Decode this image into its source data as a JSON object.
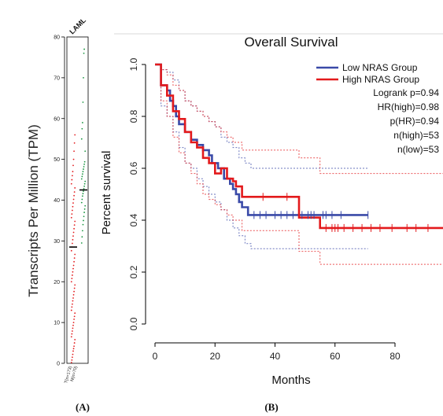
{
  "panel_labels": {
    "a": "(A)",
    "b": "(B)"
  },
  "chart_data": [
    {
      "type": "scatter",
      "panel": "A",
      "title": "LAML",
      "xlabel": "",
      "ylabel": "Transcripts Per Million (TPM)",
      "ylim": [
        0,
        80
      ],
      "yticks": [
        0,
        10,
        20,
        30,
        40,
        50,
        60,
        70,
        80
      ],
      "categories": [
        "T(n=173)",
        "N(n=70)"
      ],
      "colors": {
        "tumor": "#e31a1c",
        "normal": "#1a9641",
        "median": "#000000"
      },
      "series": [
        {
          "name": "",
          "category": "T(n=173)",
          "median": 28.5,
          "values": [
            0.2,
            0.8,
            1.5,
            2.2,
            3.0,
            3.6,
            4.2,
            5.0,
            5.8,
            6.5,
            7.2,
            7.9,
            8.6,
            9.3,
            10.0,
            10.8,
            11.5,
            12.3,
            13.0,
            13.8,
            14.5,
            15.3,
            16.0,
            16.8,
            17.6,
            18.4,
            19.2,
            20.0,
            20.8,
            21.6,
            22.4,
            23.2,
            24.0,
            24.9,
            25.8,
            26.7,
            27.6,
            28.5,
            29.4,
            30.3,
            31.2,
            32.1,
            33.0,
            33.9,
            34.8,
            35.7,
            36.6,
            37.5,
            38.4,
            39.3,
            40.2,
            41.1,
            42.0,
            43.0,
            44.0,
            45.0,
            46.0,
            47.0,
            48.5,
            50.0,
            52.0,
            54.0,
            56.0
          ]
        },
        {
          "name": "",
          "category": "N(n=70)",
          "median": 42.5,
          "values": [
            29.5,
            31.0,
            32.5,
            34.0,
            35.0,
            36.0,
            37.0,
            37.8,
            38.6,
            39.4,
            40.2,
            41.0,
            41.6,
            42.2,
            42.8,
            43.4,
            44.0,
            44.6,
            45.2,
            45.8,
            46.4,
            47.0,
            47.6,
            48.2,
            48.8,
            49.4,
            52.0,
            55.0,
            57.5,
            59.0,
            64.0,
            70.0,
            76.0,
            77.0
          ]
        }
      ]
    },
    {
      "type": "line",
      "panel": "B",
      "title": "Overall Survival",
      "xlabel": "Months",
      "ylabel": "Percent survival",
      "xlim": [
        0,
        96
      ],
      "ylim": [
        0,
        1.0
      ],
      "xticks": [
        0,
        20,
        40,
        60,
        80
      ],
      "yticks": [
        0.0,
        0.2,
        0.4,
        0.6,
        0.8,
        1.0
      ],
      "legend_position": "top-right",
      "stats": [
        "Logrank p=0.94",
        "HR(high)=0.98",
        "p(HR)=0.94",
        "n(high)=53",
        "n(low)=53"
      ],
      "series": [
        {
          "name": "Low NRAS Group",
          "color": "#3a4aa8",
          "steps": [
            [
              0,
              1.0
            ],
            [
              2,
              0.92
            ],
            [
              4,
              0.9
            ],
            [
              5,
              0.86
            ],
            [
              6,
              0.84
            ],
            [
              7,
              0.8
            ],
            [
              8,
              0.77
            ],
            [
              10,
              0.74
            ],
            [
              12,
              0.71
            ],
            [
              14,
              0.69
            ],
            [
              16,
              0.67
            ],
            [
              18,
              0.65
            ],
            [
              19,
              0.62
            ],
            [
              21,
              0.6
            ],
            [
              23,
              0.56
            ],
            [
              25,
              0.54
            ],
            [
              26,
              0.52
            ],
            [
              27,
              0.5
            ],
            [
              28,
              0.47
            ],
            [
              29,
              0.45
            ],
            [
              31,
              0.42
            ],
            [
              71,
              0.42
            ]
          ],
          "censored": [
            33,
            35,
            37,
            40,
            42,
            44,
            46,
            49,
            51,
            52,
            53,
            56,
            57,
            59,
            62,
            71
          ],
          "ci_upper": [
            [
              0,
              1.0
            ],
            [
              2,
              0.98
            ],
            [
              4,
              0.97
            ],
            [
              6,
              0.94
            ],
            [
              8,
              0.9
            ],
            [
              10,
              0.86
            ],
            [
              12,
              0.84
            ],
            [
              14,
              0.82
            ],
            [
              16,
              0.8
            ],
            [
              18,
              0.78
            ],
            [
              20,
              0.76
            ],
            [
              22,
              0.72
            ],
            [
              24,
              0.7
            ],
            [
              26,
              0.68
            ],
            [
              28,
              0.64
            ],
            [
              30,
              0.62
            ],
            [
              32,
              0.6
            ],
            [
              71,
              0.6
            ]
          ],
          "ci_lower": [
            [
              0,
              1.0
            ],
            [
              2,
              0.84
            ],
            [
              4,
              0.8
            ],
            [
              6,
              0.74
            ],
            [
              8,
              0.68
            ],
            [
              10,
              0.62
            ],
            [
              12,
              0.6
            ],
            [
              14,
              0.56
            ],
            [
              16,
              0.53
            ],
            [
              18,
              0.5
            ],
            [
              20,
              0.47
            ],
            [
              22,
              0.44
            ],
            [
              24,
              0.4
            ],
            [
              26,
              0.37
            ],
            [
              28,
              0.34
            ],
            [
              30,
              0.31
            ],
            [
              32,
              0.29
            ],
            [
              71,
              0.29
            ]
          ]
        },
        {
          "name": "High NRAS Group",
          "color": "#e31a1c",
          "steps": [
            [
              0,
              1.0
            ],
            [
              2,
              0.92
            ],
            [
              4,
              0.88
            ],
            [
              6,
              0.82
            ],
            [
              8,
              0.79
            ],
            [
              10,
              0.74
            ],
            [
              12,
              0.7
            ],
            [
              14,
              0.68
            ],
            [
              16,
              0.64
            ],
            [
              18,
              0.62
            ],
            [
              20,
              0.58
            ],
            [
              22,
              0.6
            ],
            [
              24,
              0.56
            ],
            [
              26,
              0.55
            ],
            [
              27,
              0.53
            ],
            [
              29,
              0.49
            ],
            [
              48,
              0.41
            ],
            [
              55,
              0.37
            ],
            [
              96,
              0.37
            ]
          ],
          "censored": [
            36,
            44,
            57,
            59,
            60,
            61,
            63,
            66,
            69,
            72,
            75,
            79,
            84,
            87,
            91
          ],
          "ci_upper": [
            [
              0,
              1.0
            ],
            [
              2,
              0.98
            ],
            [
              4,
              0.96
            ],
            [
              6,
              0.92
            ],
            [
              8,
              0.9
            ],
            [
              10,
              0.86
            ],
            [
              12,
              0.84
            ],
            [
              14,
              0.82
            ],
            [
              16,
              0.8
            ],
            [
              18,
              0.78
            ],
            [
              20,
              0.76
            ],
            [
              22,
              0.74
            ],
            [
              24,
              0.72
            ],
            [
              26,
              0.7
            ],
            [
              29,
              0.67
            ],
            [
              48,
              0.64
            ],
            [
              55,
              0.58
            ],
            [
              96,
              0.58
            ]
          ],
          "ci_lower": [
            [
              0,
              1.0
            ],
            [
              2,
              0.86
            ],
            [
              4,
              0.8
            ],
            [
              6,
              0.72
            ],
            [
              8,
              0.66
            ],
            [
              10,
              0.62
            ],
            [
              12,
              0.58
            ],
            [
              14,
              0.54
            ],
            [
              16,
              0.5
            ],
            [
              18,
              0.48
            ],
            [
              20,
              0.46
            ],
            [
              22,
              0.44
            ],
            [
              24,
              0.42
            ],
            [
              26,
              0.4
            ],
            [
              29,
              0.36
            ],
            [
              48,
              0.28
            ],
            [
              55,
              0.23
            ],
            [
              96,
              0.23
            ]
          ]
        }
      ]
    }
  ]
}
